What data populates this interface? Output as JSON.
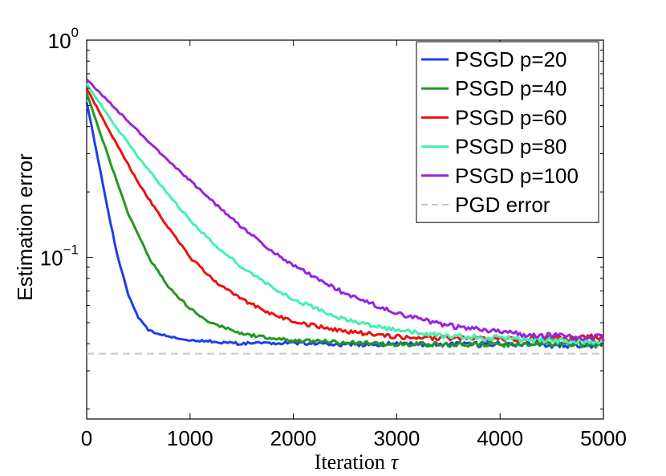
{
  "chart_data": {
    "type": "line",
    "title": "",
    "xlabel": "Iteration",
    "xlabel_symbol": "τ",
    "ylabel": "Estimation error",
    "y_scale": "log",
    "xlim": [
      0,
      5000
    ],
    "ylim": [
      0.018,
      1.0
    ],
    "x_ticks": [
      0,
      1000,
      2000,
      3000,
      4000,
      5000
    ],
    "x_tick_labels": [
      "0",
      "1000",
      "2000",
      "3000",
      "4000",
      "5000"
    ],
    "y_ticks": [
      {
        "value": 1.0,
        "base": "10",
        "exp": "0"
      },
      {
        "value": 0.1,
        "base": "10",
        "exp": "−1"
      }
    ],
    "grid": false,
    "legend_position": "top-right",
    "series": [
      {
        "name": "PSGD p=20",
        "color": "#1f3fe6",
        "x": [
          0,
          100,
          200,
          300,
          400,
          500,
          600,
          700,
          800,
          1000,
          1200,
          1500,
          2000,
          2500,
          3000,
          3500,
          4000,
          4500,
          5000
        ],
        "y": [
          0.52,
          0.3,
          0.17,
          0.1,
          0.068,
          0.053,
          0.046,
          0.0445,
          0.043,
          0.0415,
          0.041,
          0.04,
          0.0405,
          0.0395,
          0.04,
          0.0395,
          0.0398,
          0.0395,
          0.0395
        ]
      },
      {
        "name": "PSGD p=40",
        "color": "#1f9a1f",
        "x": [
          0,
          200,
          400,
          600,
          800,
          1000,
          1200,
          1500,
          1800,
          2000,
          2500,
          3000,
          3500,
          4000,
          4500,
          5000
        ],
        "y": [
          0.57,
          0.3,
          0.16,
          0.1,
          0.072,
          0.058,
          0.05,
          0.0445,
          0.0422,
          0.0415,
          0.0405,
          0.0398,
          0.0398,
          0.0398,
          0.0398,
          0.0395
        ]
      },
      {
        "name": "PSGD p=60",
        "color": "#ee1010",
        "x": [
          0,
          250,
          500,
          750,
          1000,
          1250,
          1500,
          1750,
          2000,
          2500,
          3000,
          3500,
          4000,
          4500,
          5000
        ],
        "y": [
          0.6,
          0.36,
          0.22,
          0.145,
          0.1,
          0.077,
          0.064,
          0.056,
          0.0505,
          0.0455,
          0.043,
          0.0425,
          0.0422,
          0.0422,
          0.0428
        ]
      },
      {
        "name": "PSGD p=80",
        "color": "#40f2b0",
        "x": [
          0,
          250,
          500,
          750,
          1000,
          1250,
          1500,
          1750,
          2000,
          2500,
          3000,
          3500,
          4000,
          4500,
          5000
        ],
        "y": [
          0.63,
          0.42,
          0.29,
          0.205,
          0.148,
          0.113,
          0.09,
          0.075,
          0.064,
          0.0515,
          0.046,
          0.0435,
          0.0425,
          0.0415,
          0.041
        ]
      },
      {
        "name": "PSGD p=100",
        "color": "#9a22e0",
        "x": [
          0,
          250,
          500,
          750,
          1000,
          1250,
          1500,
          1750,
          2000,
          2500,
          3000,
          3500,
          4000,
          4500,
          5000
        ],
        "y": [
          0.66,
          0.5,
          0.38,
          0.29,
          0.225,
          0.175,
          0.138,
          0.111,
          0.092,
          0.068,
          0.055,
          0.0485,
          0.045,
          0.0435,
          0.0425
        ]
      },
      {
        "name": "PGD error",
        "color": "#c8c8c8",
        "dashed": true,
        "x": [
          0,
          5000
        ],
        "y": [
          0.036,
          0.036
        ]
      }
    ]
  }
}
